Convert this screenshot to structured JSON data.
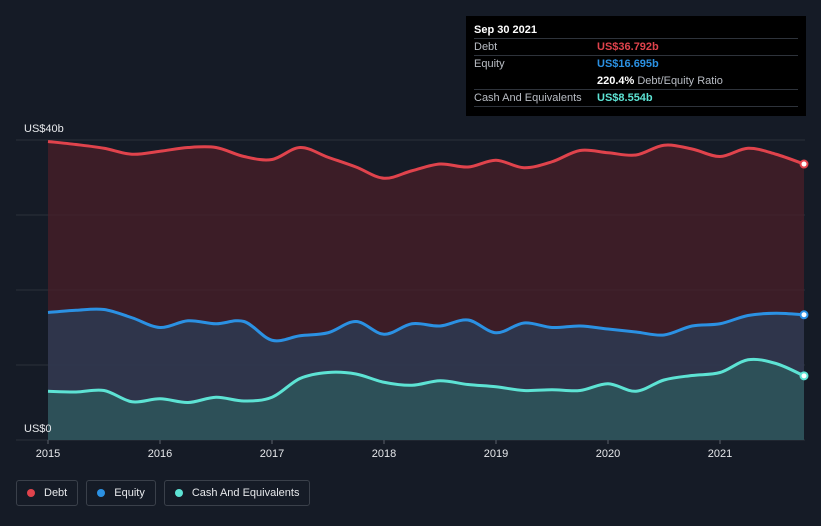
{
  "chart_data": {
    "type": "area",
    "y_max_label": "US$40b",
    "y_min_label": "US$0",
    "ylim": [
      0,
      40
    ],
    "xlim": [
      2015.0,
      2021.75
    ],
    "x_ticks": [
      "2015",
      "2016",
      "2017",
      "2018",
      "2019",
      "2020",
      "2021"
    ],
    "series": [
      {
        "name": "Debt",
        "color": "#e0434c",
        "x": [
          2015.0,
          2015.25,
          2015.5,
          2015.75,
          2016.0,
          2016.25,
          2016.5,
          2016.75,
          2017.0,
          2017.25,
          2017.5,
          2017.75,
          2018.0,
          2018.25,
          2018.5,
          2018.75,
          2019.0,
          2019.25,
          2019.5,
          2019.75,
          2020.0,
          2020.25,
          2020.5,
          2020.75,
          2021.0,
          2021.25,
          2021.5,
          2021.75
        ],
        "values": [
          39.8,
          39.4,
          38.9,
          38.1,
          38.5,
          39.0,
          39.0,
          37.8,
          37.4,
          39.0,
          37.7,
          36.4,
          34.9,
          35.9,
          36.8,
          36.4,
          37.3,
          36.3,
          37.1,
          38.6,
          38.3,
          38.0,
          39.3,
          38.8,
          37.8,
          38.9,
          38.1,
          36.792
        ]
      },
      {
        "name": "Equity",
        "color": "#2b91e3",
        "x": [
          2015.0,
          2015.25,
          2015.5,
          2015.75,
          2016.0,
          2016.25,
          2016.5,
          2016.75,
          2017.0,
          2017.25,
          2017.5,
          2017.75,
          2018.0,
          2018.25,
          2018.5,
          2018.75,
          2019.0,
          2019.25,
          2019.5,
          2019.75,
          2020.0,
          2020.25,
          2020.5,
          2020.75,
          2021.0,
          2021.25,
          2021.5,
          2021.75
        ],
        "values": [
          17.0,
          17.3,
          17.4,
          16.3,
          15.0,
          15.9,
          15.5,
          15.8,
          13.3,
          13.9,
          14.3,
          15.8,
          14.1,
          15.5,
          15.2,
          16.0,
          14.3,
          15.6,
          15.0,
          15.2,
          14.8,
          14.4,
          14.0,
          15.2,
          15.5,
          16.6,
          16.9,
          16.695
        ]
      },
      {
        "name": "Cash And Equivalents",
        "color": "#5de3d4",
        "x": [
          2015.0,
          2015.25,
          2015.5,
          2015.75,
          2016.0,
          2016.25,
          2016.5,
          2016.75,
          2017.0,
          2017.25,
          2017.5,
          2017.75,
          2018.0,
          2018.25,
          2018.5,
          2018.75,
          2019.0,
          2019.25,
          2019.5,
          2019.75,
          2020.0,
          2020.25,
          2020.5,
          2020.75,
          2021.0,
          2021.25,
          2021.5,
          2021.75
        ],
        "values": [
          6.5,
          6.4,
          6.6,
          5.1,
          5.5,
          5.0,
          5.7,
          5.2,
          5.7,
          8.2,
          9.0,
          8.8,
          7.7,
          7.3,
          7.9,
          7.4,
          7.1,
          6.6,
          6.7,
          6.6,
          7.5,
          6.5,
          8.0,
          8.6,
          9.0,
          10.7,
          10.2,
          8.554
        ]
      }
    ],
    "tooltip": {
      "date": "Sep 30 2021",
      "rows": [
        {
          "label": "Debt",
          "value": "US$36.792b",
          "color": "#e0434c"
        },
        {
          "label": "Equity",
          "value": "US$16.695b",
          "color": "#2b91e3"
        },
        {
          "label": "",
          "value": "220.4%",
          "suffix": "Debt/Equity Ratio",
          "color": "#ffffff"
        },
        {
          "label": "Cash And Equivalents",
          "value": "US$8.554b",
          "color": "#5de3d4"
        }
      ]
    },
    "legend": [
      {
        "label": "Debt",
        "color": "#e0434c"
      },
      {
        "label": "Equity",
        "color": "#2b91e3"
      },
      {
        "label": "Cash And Equivalents",
        "color": "#5de3d4"
      }
    ]
  }
}
